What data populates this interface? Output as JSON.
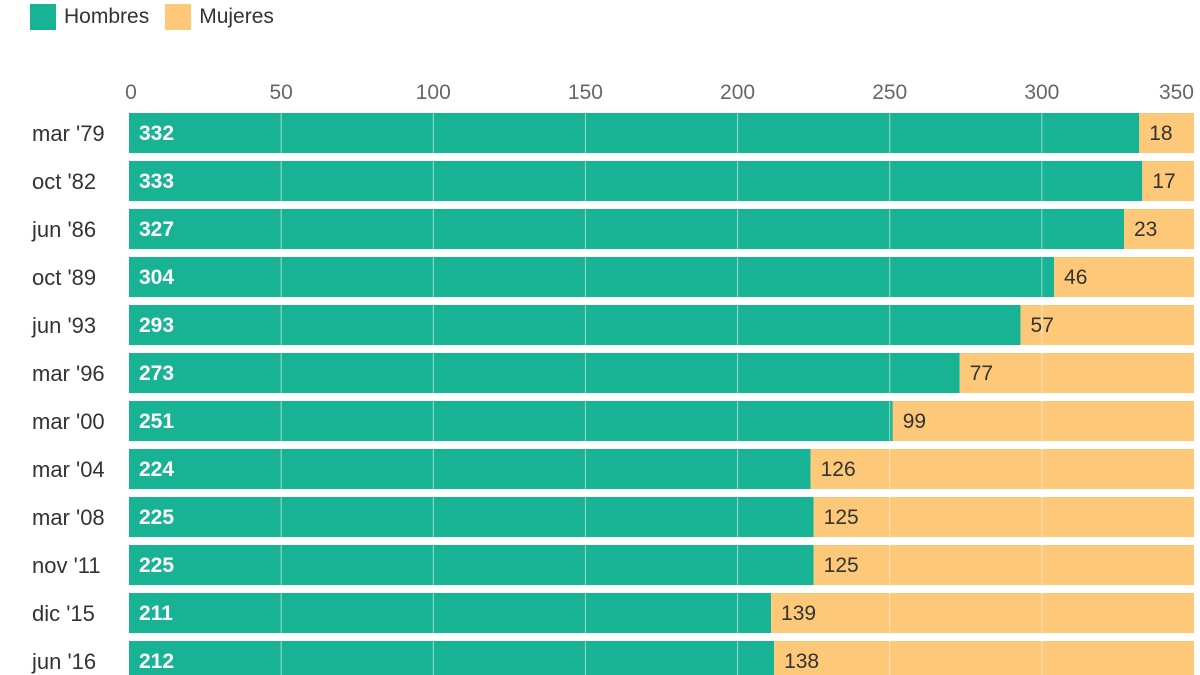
{
  "legend": {
    "items": [
      {
        "label": "Hombres",
        "color": "#18b394"
      },
      {
        "label": "Mujeres",
        "color": "#fdc878"
      }
    ]
  },
  "chart_data": {
    "type": "bar",
    "orientation": "horizontal",
    "stacked": true,
    "categories": [
      "mar '79",
      "oct '82",
      "jun '86",
      "oct '89",
      "jun '93",
      "mar '96",
      "mar '00",
      "mar '04",
      "mar '08",
      "nov '11",
      "dic '15",
      "jun '16"
    ],
    "series": [
      {
        "name": "Hombres",
        "color": "#18b394",
        "values": [
          332,
          333,
          327,
          304,
          293,
          273,
          251,
          224,
          225,
          225,
          211,
          212
        ]
      },
      {
        "name": "Mujeres",
        "color": "#fdc878",
        "values": [
          18,
          17,
          23,
          46,
          57,
          77,
          99,
          126,
          125,
          125,
          139,
          138
        ]
      }
    ],
    "xlim": [
      0,
      350
    ],
    "xticks": [
      0,
      50,
      100,
      150,
      200,
      250,
      300,
      350
    ],
    "grid": true,
    "legend_position": "top-left"
  }
}
